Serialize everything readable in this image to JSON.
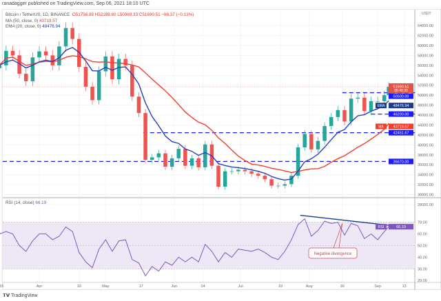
{
  "header": {
    "published": "ranadagger published on TradingView.com, Sep 06, 2021 18:10 UTC"
  },
  "legend": {
    "symbol": "Bitcoin / TetherUS, 1D, BINANCE",
    "ohlc": "O51756.88 H52188.80 L50969.33 C51690.51 −66.37 (−0.13%)",
    "ma_label": "MA (50, close, 0)",
    "ma_value": "43719.57",
    "ema_label": "EMA (20, close, 0)",
    "ema_value": "48476.94",
    "rsi_label": "RSI (14, close)",
    "rsi_value": "66.19"
  },
  "colors": {
    "up": "#26a69a",
    "down": "#ef5350",
    "ma": "#f23c2c",
    "ema": "#1e3fbf",
    "levels": "#1a1aff",
    "rsi": "#7e57c2",
    "rsi_band": "#ede7f6",
    "trendline": "#123a8c",
    "annotation": "#c2454a"
  },
  "chart_data": {
    "type": "candlestick",
    "currency": "USDT",
    "y_ticks": [
      "28000.00",
      "30000.00",
      "32000.00",
      "34000.00",
      "36000.00",
      "38000.00",
      "40000.00",
      "42000.00",
      "44000.00",
      "46000.00",
      "48000.00",
      "50000.00",
      "52000.00",
      "54000.00",
      "56000.00",
      "58000.00",
      "60000.00",
      "62000.00",
      "64000.00"
    ],
    "ylim": [
      28000,
      64000
    ],
    "x_ticks": [
      {
        "label": "15",
        "date": "2021-03-15"
      },
      {
        "label": "Apr",
        "date": "2021-04-01"
      },
      {
        "label": "19",
        "date": "2021-04-19"
      },
      {
        "label": "May",
        "date": "2021-05-01"
      },
      {
        "label": "17",
        "date": "2021-05-17"
      },
      {
        "label": "Jun",
        "date": "2021-06-01"
      },
      {
        "label": "14",
        "date": "2021-06-14"
      },
      {
        "label": "Jul",
        "date": "2021-07-01"
      },
      {
        "label": "19",
        "date": "2021-07-19"
      },
      {
        "label": "Aug",
        "date": "2021-08-01"
      },
      {
        "label": "16",
        "date": "2021-08-16"
      },
      {
        "label": "Sep",
        "date": "2021-09-01"
      },
      {
        "label": "13",
        "date": "2021-09-13"
      }
    ],
    "candles": [
      [
        "2021-03-14",
        56000
      ],
      [
        "2021-03-17",
        58900
      ],
      [
        "2021-03-20",
        58000
      ],
      [
        "2021-03-23",
        54300
      ],
      [
        "2021-03-26",
        52800
      ],
      [
        "2021-03-29",
        57600
      ],
      [
        "2021-04-01",
        58800
      ],
      [
        "2021-04-04",
        58000
      ],
      [
        "2021-04-07",
        56000
      ],
      [
        "2021-04-10",
        59800
      ],
      [
        "2021-04-13",
        63500
      ],
      [
        "2021-04-16",
        61300
      ],
      [
        "2021-04-19",
        55700
      ],
      [
        "2021-04-22",
        51700
      ],
      [
        "2021-04-25",
        49000
      ],
      [
        "2021-04-28",
        54800
      ],
      [
        "2021-05-01",
        57800
      ],
      [
        "2021-05-04",
        53200
      ],
      [
        "2021-05-07",
        57300
      ],
      [
        "2021-05-10",
        56000
      ],
      [
        "2021-05-13",
        49700
      ],
      [
        "2021-05-16",
        46400
      ],
      [
        "2021-05-19",
        37000
      ],
      [
        "2021-05-22",
        37500
      ],
      [
        "2021-05-25",
        38300
      ],
      [
        "2021-05-28",
        35600
      ],
      [
        "2021-05-31",
        37300
      ],
      [
        "2021-06-03",
        39200
      ],
      [
        "2021-06-06",
        35800
      ],
      [
        "2021-06-09",
        37300
      ],
      [
        "2021-06-12",
        35500
      ],
      [
        "2021-06-15",
        40100
      ],
      [
        "2021-06-18",
        35800
      ],
      [
        "2021-06-21",
        31600
      ],
      [
        "2021-06-24",
        34700
      ],
      [
        "2021-06-27",
        34700
      ],
      [
        "2021-06-30",
        35000
      ],
      [
        "2021-07-03",
        34700
      ],
      [
        "2021-07-06",
        34200
      ],
      [
        "2021-07-09",
        33800
      ],
      [
        "2021-07-12",
        33100
      ],
      [
        "2021-07-15",
        31800
      ],
      [
        "2021-07-18",
        31800
      ],
      [
        "2021-07-21",
        32100
      ],
      [
        "2021-07-24",
        33800
      ],
      [
        "2021-07-27",
        39500
      ],
      [
        "2021-07-30",
        42200
      ],
      [
        "2021-08-02",
        39100
      ],
      [
        "2021-08-05",
        40800
      ],
      [
        "2021-08-08",
        43800
      ],
      [
        "2021-08-11",
        45600
      ],
      [
        "2021-08-14",
        47000
      ],
      [
        "2021-08-17",
        44700
      ],
      [
        "2021-08-20",
        49300
      ],
      [
        "2021-08-23",
        49500
      ],
      [
        "2021-08-26",
        46800
      ],
      [
        "2021-08-29",
        48800
      ],
      [
        "2021-09-01",
        48800
      ],
      [
        "2021-09-04",
        50000
      ],
      [
        "2021-09-06",
        51690.51
      ]
    ],
    "rsi": [
      60,
      62,
      60,
      50,
      45,
      54,
      60,
      60,
      55,
      58,
      66,
      62,
      44,
      36,
      31,
      47,
      55,
      45,
      54,
      55,
      38,
      35,
      24,
      32,
      28,
      36,
      33,
      40,
      36,
      40,
      36,
      51,
      45,
      36,
      44,
      40,
      47,
      46,
      45,
      47,
      44,
      40,
      38,
      45,
      55,
      68,
      73,
      58,
      63,
      71,
      69,
      70,
      59,
      69,
      67,
      56,
      60,
      55,
      62,
      66.19
    ],
    "rsi_ticks": [
      "20.00",
      "30.00",
      "40.00",
      "50.00",
      "60.00",
      "70.00"
    ],
    "rsi_band": [
      30,
      70
    ],
    "levels": [
      {
        "price": 50500,
        "label": "50500.00",
        "from": "2021-08-16"
      },
      {
        "price": 46200,
        "label": "46200.00",
        "from": "2021-08-29"
      },
      {
        "price": 42451.67,
        "label": "42451.67",
        "from": "2021-05-18"
      },
      {
        "price": 36670,
        "label": "36670.00",
        "from": "2021-03-14"
      }
    ],
    "last_price": {
      "value": "51690.51",
      "countdown": "05:49:30"
    },
    "ema_tag": "EMA",
    "ma_tag": "MA",
    "rsi_tag": "RSI",
    "rsi_trendline": [
      {
        "date": "2021-07-28",
        "rsi": 76
      },
      {
        "date": "2021-09-08",
        "rsi": 67
      }
    ],
    "annotation": {
      "text": "Negative divergence",
      "points_to": {
        "date": "2021-08-16",
        "rsi": 69
      }
    }
  },
  "footer": {
    "logo": "TradingView"
  }
}
